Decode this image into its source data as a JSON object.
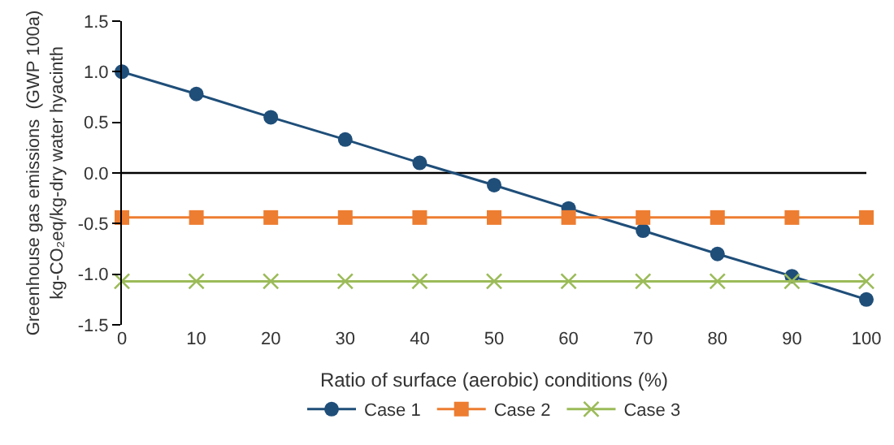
{
  "chart_data": {
    "type": "line",
    "xlabel": "Ratio of surface (aerobic) conditions (%)",
    "ylabel": "Greenhouse gas emissions  (GWP 100a)\nkg-CO₂eq/kg-dry water hyacinth",
    "x": [
      0,
      10,
      20,
      30,
      40,
      50,
      60,
      70,
      80,
      90,
      100
    ],
    "xlim": [
      0,
      100
    ],
    "xticks": [
      0,
      10,
      20,
      30,
      40,
      50,
      60,
      70,
      80,
      90,
      100
    ],
    "ylim": [
      -1.5,
      1.5
    ],
    "yticks": [
      {
        "value": -1.5,
        "label": "-1.5"
      },
      {
        "value": -1,
        "label": "-1.0"
      },
      {
        "value": -0.5,
        "label": "-0.5"
      },
      {
        "value": 0,
        "label": "0.0"
      },
      {
        "value": 0.5,
        "label": "0.5"
      },
      {
        "value": 1,
        "label": "1.0"
      },
      {
        "value": 1.5,
        "label": "1.5"
      }
    ],
    "grid": false,
    "ref_lines": [
      {
        "axis": "y",
        "value": 0,
        "color": "#000000"
      }
    ],
    "legend": "bottom",
    "line_style": "solid",
    "series": [
      {
        "name": "Case 1",
        "color": "#1f4e79",
        "marker": "circle",
        "values": [
          1.0,
          0.78,
          0.55,
          0.33,
          0.1,
          -0.12,
          -0.35,
          -0.57,
          -0.8,
          -1.02,
          -1.25
        ]
      },
      {
        "name": "Case 2",
        "color": "#ed7d31",
        "marker": "square",
        "values": [
          -0.44,
          -0.44,
          -0.44,
          -0.44,
          -0.44,
          -0.44,
          -0.44,
          -0.44,
          -0.44,
          -0.44,
          -0.44
        ]
      },
      {
        "name": "Case 3",
        "color": "#9bbb59",
        "marker": "cross",
        "values": [
          -1.07,
          -1.07,
          -1.07,
          -1.07,
          -1.07,
          -1.07,
          -1.07,
          -1.07,
          -1.07,
          -1.07,
          -1.07
        ]
      }
    ]
  }
}
